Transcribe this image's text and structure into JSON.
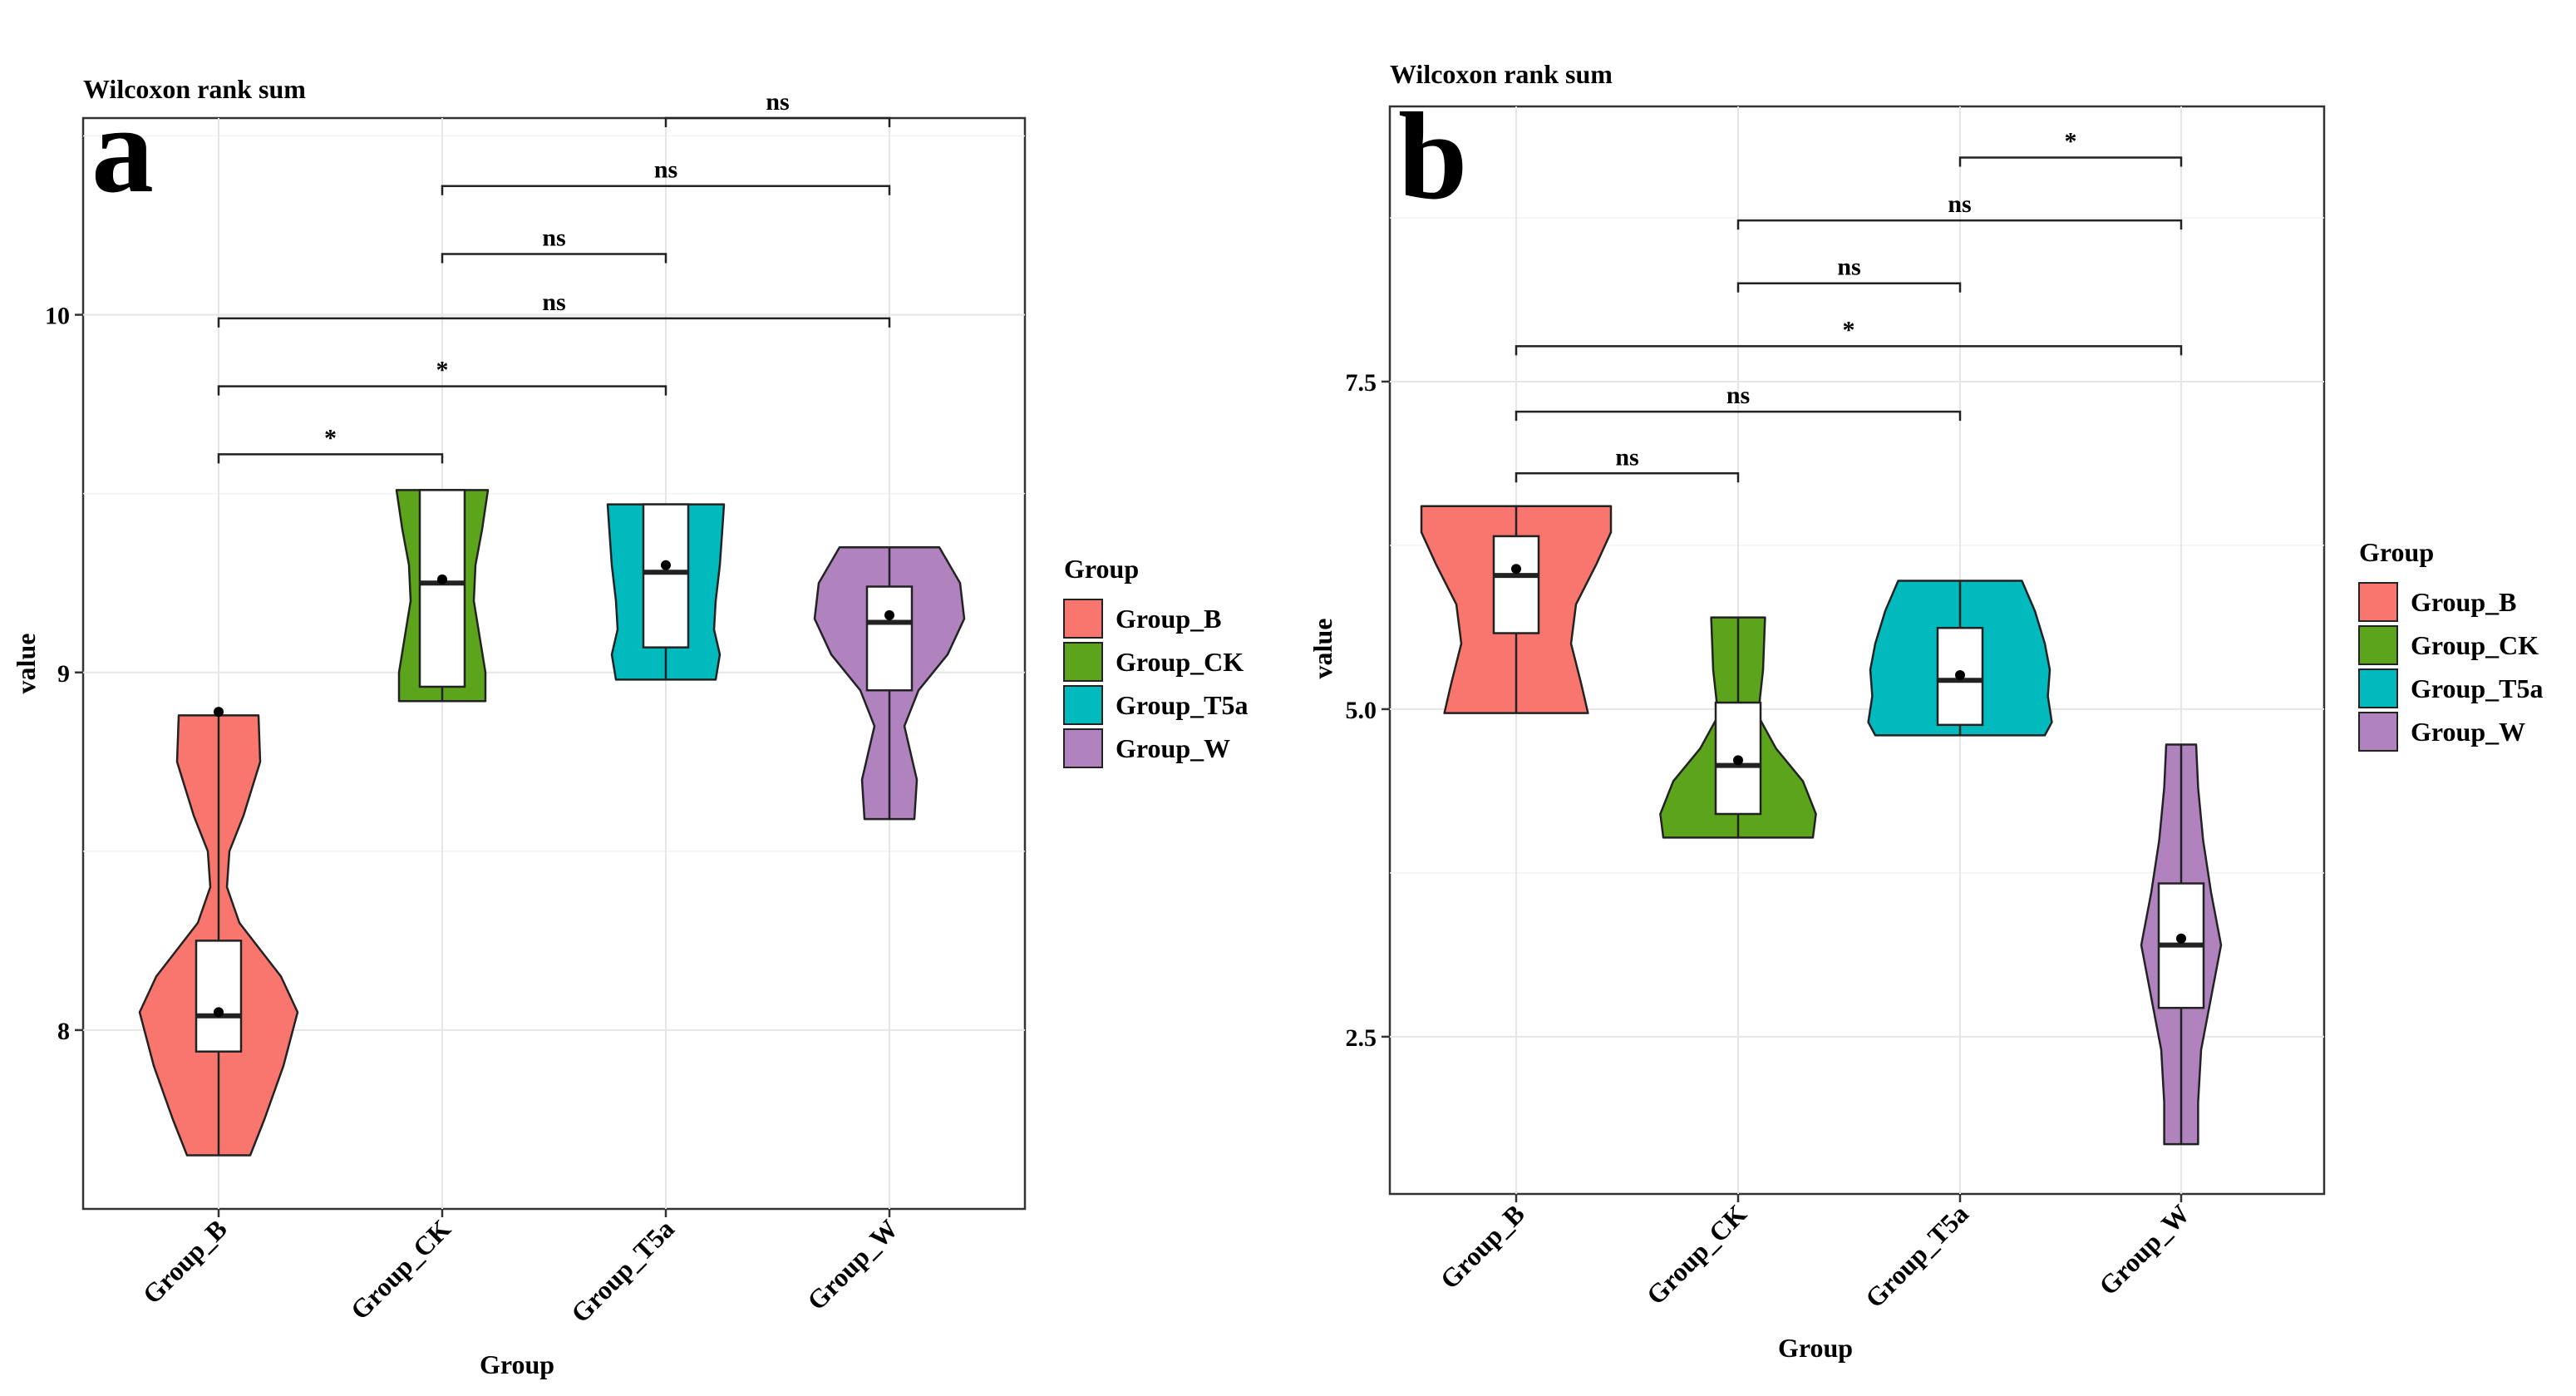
{
  "colors": {
    "Group_B": "#F8766D",
    "Group_CK": "#5BA41C",
    "Group_T5a": "#00BABE",
    "Group_W": "#B082BE"
  },
  "chart_data": [
    {
      "type": "violin",
      "panel_label": "a",
      "title": "Wilcoxon rank sum",
      "xlabel": "Group",
      "ylabel": "value",
      "categories": [
        "Group_B",
        "Group_CK",
        "Group_T5a",
        "Group_W"
      ],
      "ylim": [
        7.5,
        10.55
      ],
      "yticks": [
        8,
        9,
        10
      ],
      "ytick_labels": [
        "8",
        "9",
        "10"
      ],
      "legend": {
        "title": "Group",
        "position": "right",
        "entries": [
          "Group_B",
          "Group_CK",
          "Group_T5a",
          "Group_W"
        ]
      },
      "groups": [
        {
          "name": "Group_B",
          "min": 7.65,
          "max": 8.88,
          "q1": 7.94,
          "median": 8.04,
          "q3": 8.25,
          "mean": 8.05,
          "outliers": [
            8.89
          ],
          "density": [
            [
              7.65,
              0.38
            ],
            [
              7.75,
              0.55
            ],
            [
              7.9,
              0.78
            ],
            [
              8.05,
              0.95
            ],
            [
              8.15,
              0.75
            ],
            [
              8.3,
              0.25
            ],
            [
              8.4,
              0.1
            ],
            [
              8.5,
              0.13
            ],
            [
              8.6,
              0.3
            ],
            [
              8.75,
              0.5
            ],
            [
              8.88,
              0.48
            ]
          ]
        },
        {
          "name": "Group_CK",
          "min": 8.92,
          "max": 9.51,
          "q1": 8.96,
          "median": 9.25,
          "q3": 9.51,
          "mean": 9.26,
          "outliers": [],
          "density": [
            [
              8.92,
              0.52
            ],
            [
              9.0,
              0.52
            ],
            [
              9.1,
              0.45
            ],
            [
              9.2,
              0.38
            ],
            [
              9.3,
              0.4
            ],
            [
              9.4,
              0.48
            ],
            [
              9.51,
              0.55
            ]
          ]
        },
        {
          "name": "Group_T5a",
          "min": 8.98,
          "max": 9.47,
          "q1": 9.07,
          "median": 9.28,
          "q3": 9.47,
          "mean": 9.3,
          "outliers": [],
          "density": [
            [
              8.98,
              0.6
            ],
            [
              9.05,
              0.65
            ],
            [
              9.12,
              0.58
            ],
            [
              9.2,
              0.6
            ],
            [
              9.3,
              0.65
            ],
            [
              9.4,
              0.68
            ],
            [
              9.47,
              0.7
            ]
          ]
        },
        {
          "name": "Group_W",
          "min": 8.59,
          "max": 9.35,
          "q1": 8.95,
          "median": 9.14,
          "q3": 9.24,
          "mean": 9.16,
          "outliers": [],
          "density": [
            [
              8.59,
              0.3
            ],
            [
              8.7,
              0.33
            ],
            [
              8.85,
              0.18
            ],
            [
              8.95,
              0.35
            ],
            [
              9.05,
              0.7
            ],
            [
              9.15,
              0.9
            ],
            [
              9.25,
              0.85
            ],
            [
              9.35,
              0.6
            ]
          ]
        }
      ],
      "comparisons": [
        {
          "from": "Group_B",
          "to": "Group_CK",
          "y": 9.61,
          "label": "*"
        },
        {
          "from": "Group_B",
          "to": "Group_T5a",
          "y": 9.8,
          "label": "*"
        },
        {
          "from": "Group_B",
          "to": "Group_W",
          "y": 9.99,
          "label": "ns"
        },
        {
          "from": "Group_CK",
          "to": "Group_T5a",
          "y": 10.17,
          "label": "ns"
        },
        {
          "from": "Group_CK",
          "to": "Group_W",
          "y": 10.36,
          "label": "ns"
        },
        {
          "from": "Group_T5a",
          "to": "Group_W",
          "y": 10.55,
          "label": "ns"
        }
      ]
    },
    {
      "type": "violin",
      "panel_label": "b",
      "title": "Wilcoxon rank sum",
      "xlabel": "Group",
      "ylabel": "value",
      "categories": [
        "Group_B",
        "Group_CK",
        "Group_T5a",
        "Group_W"
      ],
      "ylim": [
        1.3,
        9.6
      ],
      "yticks": [
        2.5,
        5,
        7.5
      ],
      "ytick_labels": [
        "2.5",
        "5.0",
        "7.5"
      ],
      "legend": {
        "title": "Group",
        "position": "right",
        "entries": [
          "Group_B",
          "Group_CK",
          "Group_T5a",
          "Group_W"
        ]
      },
      "groups": [
        {
          "name": "Group_B",
          "min": 4.97,
          "max": 6.55,
          "q1": 5.58,
          "median": 6.02,
          "q3": 6.32,
          "mean": 6.07,
          "outliers": [],
          "density": [
            [
              4.97,
              0.72
            ],
            [
              5.2,
              0.65
            ],
            [
              5.5,
              0.55
            ],
            [
              5.8,
              0.6
            ],
            [
              6.1,
              0.8
            ],
            [
              6.35,
              0.95
            ],
            [
              6.55,
              0.95
            ]
          ]
        },
        {
          "name": "Group_CK",
          "min": 4.02,
          "max": 5.7,
          "q1": 4.2,
          "median": 4.57,
          "q3": 5.05,
          "mean": 4.61,
          "outliers": [],
          "density": [
            [
              4.02,
              0.75
            ],
            [
              4.2,
              0.78
            ],
            [
              4.45,
              0.65
            ],
            [
              4.7,
              0.38
            ],
            [
              4.95,
              0.2
            ],
            [
              5.3,
              0.25
            ],
            [
              5.7,
              0.27
            ]
          ]
        },
        {
          "name": "Group_T5a",
          "min": 4.8,
          "max": 5.98,
          "q1": 4.88,
          "median": 5.22,
          "q3": 5.62,
          "mean": 5.26,
          "outliers": [],
          "density": [
            [
              4.8,
              0.85
            ],
            [
              4.9,
              0.92
            ],
            [
              5.1,
              0.88
            ],
            [
              5.3,
              0.9
            ],
            [
              5.5,
              0.85
            ],
            [
              5.75,
              0.75
            ],
            [
              5.98,
              0.62
            ]
          ]
        },
        {
          "name": "Group_W",
          "min": 1.68,
          "max": 4.73,
          "q1": 2.72,
          "median": 3.2,
          "q3": 3.67,
          "mean": 3.25,
          "outliers": [],
          "density": [
            [
              1.68,
              0.17
            ],
            [
              2.0,
              0.17
            ],
            [
              2.4,
              0.2
            ],
            [
              2.8,
              0.3
            ],
            [
              3.2,
              0.4
            ],
            [
              3.6,
              0.3
            ],
            [
              4.0,
              0.22
            ],
            [
              4.4,
              0.17
            ],
            [
              4.73,
              0.15
            ]
          ]
        }
      ],
      "comparisons": [
        {
          "from": "Group_B",
          "to": "Group_CK",
          "y": 6.8,
          "label": "ns"
        },
        {
          "from": "Group_B",
          "to": "Group_T5a",
          "y": 7.27,
          "label": "ns"
        },
        {
          "from": "Group_B",
          "to": "Group_W",
          "y": 7.77,
          "label": "*"
        },
        {
          "from": "Group_CK",
          "to": "Group_T5a",
          "y": 8.25,
          "label": "ns"
        },
        {
          "from": "Group_CK",
          "to": "Group_W",
          "y": 8.73,
          "label": "ns"
        },
        {
          "from": "Group_T5a",
          "to": "Group_W",
          "y": 9.21,
          "label": "*"
        }
      ]
    }
  ]
}
